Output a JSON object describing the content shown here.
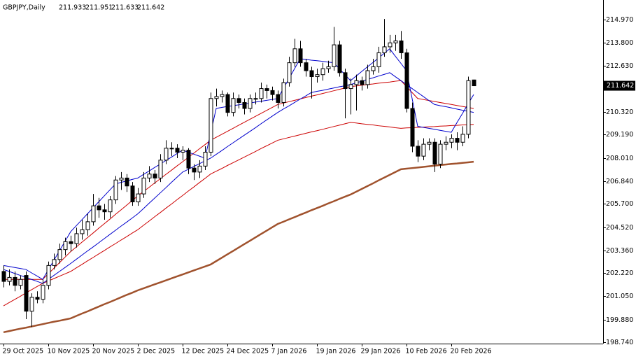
{
  "chart_data": {
    "type": "candlestick",
    "title": "GBPJPY,Daily",
    "grid": false,
    "categories": [
      "29 Oct 2025",
      null,
      null,
      null,
      null,
      null,
      null,
      null,
      "10 Nov 2025",
      null,
      null,
      null,
      null,
      null,
      null,
      null,
      "20 Nov 2025",
      null,
      null,
      null,
      null,
      null,
      null,
      null,
      "2 Dec 2025",
      null,
      null,
      null,
      null,
      null,
      null,
      null,
      "12 Dec 2025",
      null,
      null,
      null,
      null,
      null,
      null,
      null,
      "24 Dec 2025",
      null,
      null,
      null,
      null,
      null,
      null,
      null,
      "7 Jan 2026",
      null,
      null,
      null,
      null,
      null,
      null,
      null,
      "19 Jan 2026",
      null,
      null,
      null,
      null,
      null,
      null,
      null,
      "29 Jan 2026",
      null,
      null,
      null,
      null,
      null,
      null,
      null,
      "10 Feb 2026",
      null,
      null,
      null,
      null,
      null,
      null,
      null,
      "20 Feb 2026",
      null,
      null,
      null,
      null
    ],
    "ohlc": [
      [
        202.3,
        202.6,
        201.5,
        201.8
      ],
      [
        201.8,
        202.4,
        201.6,
        202.0
      ],
      [
        202.0,
        202.3,
        201.3,
        201.6
      ],
      [
        201.6,
        202.1,
        201.4,
        201.9
      ],
      [
        202.1,
        202.3,
        199.9,
        200.3
      ],
      [
        200.3,
        201.2,
        199.5,
        201.0
      ],
      [
        201.0,
        201.3,
        200.7,
        200.9
      ],
      [
        200.9,
        201.9,
        200.7,
        201.6
      ],
      [
        201.6,
        202.8,
        201.4,
        202.6
      ],
      [
        202.6,
        203.2,
        202.4,
        202.9
      ],
      [
        202.9,
        203.7,
        202.7,
        203.4
      ],
      [
        203.4,
        204.0,
        203.1,
        203.8
      ],
      [
        203.8,
        204.1,
        203.3,
        203.7
      ],
      [
        203.7,
        204.5,
        203.5,
        204.2
      ],
      [
        204.2,
        204.9,
        203.9,
        204.4
      ],
      [
        204.4,
        205.2,
        204.1,
        204.8
      ],
      [
        204.8,
        206.2,
        204.6,
        205.6
      ],
      [
        205.6,
        206.0,
        205.0,
        205.4
      ],
      [
        205.4,
        205.7,
        204.9,
        205.3
      ],
      [
        205.3,
        206.1,
        205.0,
        205.9
      ],
      [
        205.9,
        207.1,
        205.7,
        206.9
      ],
      [
        206.9,
        207.3,
        206.4,
        207.0
      ],
      [
        207.0,
        207.2,
        206.3,
        206.6
      ],
      [
        206.6,
        206.8,
        205.6,
        205.8
      ],
      [
        205.8,
        206.5,
        205.6,
        206.2
      ],
      [
        206.2,
        207.3,
        206.0,
        207.0
      ],
      [
        207.0,
        207.6,
        206.8,
        207.2
      ],
      [
        207.2,
        207.4,
        206.7,
        207.0
      ],
      [
        207.0,
        208.2,
        206.8,
        207.9
      ],
      [
        207.9,
        208.9,
        207.7,
        208.5
      ],
      [
        208.5,
        208.8,
        208.1,
        208.5
      ],
      [
        208.5,
        208.7,
        208.0,
        208.3
      ],
      [
        208.3,
        208.6,
        207.9,
        208.4
      ],
      [
        208.4,
        208.5,
        207.2,
        207.5
      ],
      [
        207.5,
        207.7,
        206.9,
        207.3
      ],
      [
        207.3,
        207.9,
        207.0,
        207.6
      ],
      [
        207.6,
        208.6,
        207.4,
        208.3
      ],
      [
        208.3,
        211.3,
        208.1,
        211.0
      ],
      [
        211.0,
        211.5,
        210.6,
        211.1
      ],
      [
        211.1,
        211.4,
        210.8,
        211.2
      ],
      [
        211.2,
        211.3,
        210.1,
        210.3
      ],
      [
        210.3,
        211.3,
        210.1,
        211.0
      ],
      [
        211.0,
        211.2,
        210.5,
        210.8
      ],
      [
        210.8,
        211.0,
        210.2,
        210.5
      ],
      [
        210.5,
        211.2,
        210.3,
        211.0
      ],
      [
        211.0,
        211.3,
        210.7,
        211.0
      ],
      [
        211.0,
        211.8,
        210.8,
        211.5
      ],
      [
        211.5,
        211.7,
        211.0,
        211.4
      ],
      [
        211.4,
        211.6,
        210.9,
        211.2
      ],
      [
        211.2,
        211.4,
        210.5,
        210.8
      ],
      [
        210.8,
        212.0,
        210.6,
        211.8
      ],
      [
        211.8,
        213.1,
        211.6,
        212.8
      ],
      [
        212.8,
        214.0,
        212.6,
        213.5
      ],
      [
        213.5,
        213.9,
        212.6,
        212.8
      ],
      [
        212.8,
        213.0,
        212.1,
        212.4
      ],
      [
        212.4,
        212.6,
        211.0,
        212.1
      ],
      [
        212.1,
        212.5,
        211.8,
        212.2
      ],
      [
        212.2,
        212.8,
        211.9,
        212.5
      ],
      [
        212.5,
        212.9,
        212.3,
        212.6
      ],
      [
        212.6,
        214.6,
        212.4,
        213.7
      ],
      [
        213.7,
        213.9,
        212.1,
        212.3
      ],
      [
        212.3,
        212.5,
        210.0,
        211.5
      ],
      [
        211.5,
        212.0,
        210.2,
        211.7
      ],
      [
        211.7,
        212.2,
        210.4,
        211.9
      ],
      [
        211.9,
        212.1,
        211.4,
        211.7
      ],
      [
        211.7,
        212.7,
        211.5,
        212.4
      ],
      [
        212.4,
        213.0,
        212.2,
        212.6
      ],
      [
        212.6,
        213.6,
        212.3,
        213.3
      ],
      [
        213.3,
        215.0,
        213.1,
        213.6
      ],
      [
        213.6,
        214.2,
        213.3,
        213.8
      ],
      [
        213.8,
        214.2,
        213.4,
        213.9
      ],
      [
        213.9,
        214.4,
        213.0,
        213.3
      ],
      [
        213.3,
        213.5,
        210.3,
        210.5
      ],
      [
        210.5,
        210.8,
        208.3,
        208.6
      ],
      [
        208.6,
        208.9,
        207.8,
        208.1
      ],
      [
        208.1,
        209.0,
        207.9,
        208.7
      ],
      [
        208.7,
        209.0,
        208.4,
        208.8
      ],
      [
        208.8,
        209.0,
        207.3,
        207.7
      ],
      [
        207.7,
        208.9,
        207.5,
        208.7
      ],
      [
        208.7,
        209.1,
        208.4,
        208.8
      ],
      [
        208.8,
        209.2,
        208.5,
        209.0
      ],
      [
        209.0,
        209.3,
        208.4,
        208.8
      ],
      [
        208.8,
        209.6,
        208.6,
        209.2
      ],
      [
        209.2,
        212.1,
        209.0,
        211.9
      ],
      [
        211.933,
        211.951,
        211.633,
        211.642
      ]
    ],
    "bull_color": "#ffffff",
    "bear_color": "#000000",
    "outline_color": "#000000",
    "lines": [
      {
        "color": "#a0522d",
        "width": 2.5,
        "values": [
          199.24,
          199.3,
          199.36,
          199.42,
          199.47,
          199.53,
          199.59,
          199.65,
          199.71,
          199.77,
          199.82,
          199.88,
          199.94,
          200.06,
          200.18,
          200.29,
          200.41,
          200.53,
          200.65,
          200.76,
          200.88,
          201.0,
          201.12,
          201.23,
          201.35,
          201.45,
          201.55,
          201.65,
          201.75,
          201.85,
          201.95,
          202.05,
          202.15,
          202.25,
          202.35,
          202.45,
          202.55,
          202.65,
          202.82,
          202.99,
          203.16,
          203.33,
          203.5,
          203.67,
          203.84,
          204.01,
          204.18,
          204.35,
          204.52,
          204.69,
          204.8,
          204.92,
          205.03,
          205.15,
          205.26,
          205.38,
          205.49,
          205.6,
          205.72,
          205.83,
          205.95,
          206.06,
          206.17,
          206.31,
          206.45,
          206.59,
          206.73,
          206.88,
          207.02,
          207.16,
          207.3,
          207.44,
          207.47,
          207.5,
          207.53,
          207.56,
          207.59,
          207.62,
          207.65,
          207.68,
          207.71,
          207.73,
          207.76,
          207.79,
          207.82
        ]
      },
      {
        "color": "#cc0000",
        "width": 1,
        "values": [
          200.57,
          200.73,
          200.89,
          201.05,
          201.22,
          201.38,
          201.54,
          201.7,
          201.82,
          201.94,
          202.06,
          202.18,
          202.3,
          202.48,
          202.65,
          202.83,
          203.0,
          203.18,
          203.35,
          203.53,
          203.7,
          203.88,
          204.05,
          204.23,
          204.4,
          204.62,
          204.83,
          205.05,
          205.26,
          205.48,
          205.69,
          205.91,
          206.12,
          206.34,
          206.55,
          206.77,
          206.98,
          207.2,
          207.34,
          207.48,
          207.63,
          207.77,
          207.91,
          208.05,
          208.19,
          208.33,
          208.48,
          208.62,
          208.76,
          208.9,
          208.97,
          209.04,
          209.11,
          209.18,
          209.25,
          209.32,
          209.38,
          209.45,
          209.52,
          209.59,
          209.66,
          209.73,
          209.8,
          209.77,
          209.73,
          209.7,
          209.67,
          209.63,
          209.6,
          209.57,
          209.53,
          209.5,
          209.52,
          209.53,
          209.55,
          209.56,
          209.58,
          209.59,
          209.61,
          209.62,
          209.64,
          209.65,
          209.67,
          209.68,
          209.7
        ]
      },
      {
        "color": "#cc0000",
        "width": 1,
        "values": [
          201.9,
          201.9,
          201.9,
          201.9,
          201.9,
          201.9,
          201.9,
          201.9,
          202.18,
          202.46,
          202.74,
          203.02,
          203.3,
          203.53,
          203.77,
          204.0,
          204.23,
          204.47,
          204.7,
          204.93,
          205.17,
          205.4,
          205.63,
          205.87,
          206.1,
          206.32,
          206.53,
          206.75,
          206.96,
          207.18,
          207.39,
          207.61,
          207.82,
          208.04,
          208.25,
          208.47,
          208.68,
          208.9,
          209.05,
          209.2,
          209.35,
          209.5,
          209.65,
          209.8,
          209.95,
          210.1,
          210.25,
          210.4,
          210.55,
          210.7,
          210.77,
          210.84,
          210.91,
          210.98,
          211.05,
          211.12,
          211.18,
          211.25,
          211.32,
          211.39,
          211.46,
          211.53,
          211.6,
          211.63,
          211.67,
          211.7,
          211.73,
          211.77,
          211.8,
          211.83,
          211.87,
          211.9,
          211.6,
          211.3,
          211.0,
          210.95,
          210.9,
          210.85,
          210.8,
          210.75,
          210.7,
          210.65,
          210.6,
          210.55,
          210.5
        ]
      },
      {
        "color": "#0000cd",
        "width": 1,
        "values": [
          202.4,
          202.3,
          202.2,
          202.1,
          202.0,
          201.9,
          201.8,
          201.7,
          201.9,
          202.1,
          202.3,
          202.5,
          202.7,
          202.91,
          203.12,
          203.33,
          203.53,
          203.74,
          203.95,
          204.16,
          204.37,
          204.58,
          204.78,
          204.99,
          205.2,
          205.46,
          205.73,
          205.99,
          206.25,
          206.51,
          206.78,
          207.04,
          207.3,
          207.44,
          207.58,
          207.72,
          207.86,
          208.0,
          208.19,
          208.38,
          208.58,
          208.77,
          208.96,
          209.15,
          209.34,
          209.53,
          209.73,
          209.92,
          210.11,
          210.3,
          210.47,
          210.63,
          210.8,
          210.97,
          211.13,
          211.3,
          211.36,
          211.41,
          211.47,
          211.53,
          211.59,
          211.64,
          211.7,
          211.79,
          211.87,
          211.96,
          212.04,
          212.13,
          212.21,
          212.3,
          212.1,
          211.9,
          211.7,
          211.5,
          211.3,
          211.1,
          210.9,
          210.7,
          210.64,
          210.59,
          210.53,
          210.47,
          210.41,
          210.36,
          210.3
        ]
      },
      {
        "color": "#0000cd",
        "width": 1,
        "values": [
          202.6,
          202.55,
          202.5,
          202.45,
          202.4,
          202.23,
          202.07,
          201.9,
          202.38,
          202.86,
          203.34,
          203.82,
          204.3,
          204.6,
          204.9,
          205.2,
          205.5,
          205.8,
          206.1,
          206.4,
          206.7,
          206.78,
          206.85,
          206.93,
          207.0,
          207.18,
          207.35,
          207.53,
          207.7,
          207.88,
          208.05,
          208.23,
          208.4,
          208.3,
          208.2,
          208.1,
          208.0,
          209.25,
          210.5,
          210.55,
          210.6,
          210.64,
          210.68,
          210.73,
          210.77,
          210.82,
          210.86,
          210.91,
          210.95,
          211.0,
          211.5,
          212.0,
          212.5,
          213.0,
          212.97,
          212.93,
          212.9,
          212.87,
          212.83,
          212.8,
          212.5,
          212.2,
          211.9,
          212.13,
          212.36,
          212.59,
          212.81,
          213.04,
          213.27,
          213.5,
          213.13,
          212.77,
          212.4,
          211.0,
          209.6,
          209.55,
          209.5,
          209.45,
          209.4,
          209.35,
          209.3,
          209.78,
          210.25,
          210.73,
          211.2
        ]
      }
    ],
    "ylim": [
      198.67,
      215.956
    ],
    "yticks": [
      {
        "value": 214.97,
        "label": "214.970"
      },
      {
        "value": 213.8,
        "label": "213.800"
      },
      {
        "value": 212.63,
        "label": "212.630"
      },
      {
        "value": 210.32,
        "label": "210.320"
      },
      {
        "value": 209.19,
        "label": "209.190"
      },
      {
        "value": 208.01,
        "label": "208.010"
      },
      {
        "value": 206.84,
        "label": "206.840"
      },
      {
        "value": 205.7,
        "label": "205.700"
      },
      {
        "value": 204.52,
        "label": "204.520"
      },
      {
        "value": 203.36,
        "label": "203.360"
      },
      {
        "value": 202.22,
        "label": "202.220"
      },
      {
        "value": 201.05,
        "label": "201.050"
      },
      {
        "value": 199.88,
        "label": "199.880"
      },
      {
        "value": 198.74,
        "label": "198.740"
      }
    ]
  }
}
